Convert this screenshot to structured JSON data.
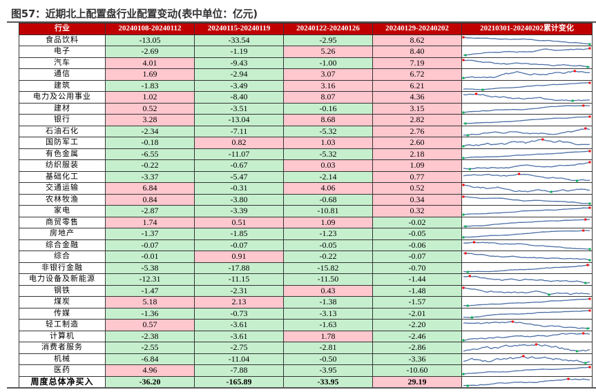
{
  "title": "图57：近期北上配置盘行业配置变动(表中单位：亿元)",
  "colors": {
    "header": "#c00000",
    "positive": "#ffc7ce",
    "negative": "#c6efce",
    "sparkline": "#4a6fa5",
    "max_marker": "#ff0000",
    "min_marker": "#00b050"
  },
  "chart_data": {
    "type": "table",
    "columns": [
      "行业",
      "20240108-20240112",
      "20240115-20240119",
      "20240122-20240126",
      "20240129-20240202",
      "20210301-20240202累计变化"
    ],
    "rows": [
      [
        "食品饮料",
        -13.05,
        -33.54,
        -2.95,
        8.62
      ],
      [
        "电子",
        -2.69,
        -1.19,
        5.26,
        8.4
      ],
      [
        "汽车",
        4.01,
        -9.43,
        -1.0,
        7.19
      ],
      [
        "通信",
        1.69,
        -2.94,
        3.07,
        6.72
      ],
      [
        "建筑",
        -1.83,
        -3.49,
        3.16,
        6.21
      ],
      [
        "电力及公用事业",
        1.02,
        -8.4,
        8.07,
        4.36
      ],
      [
        "建材",
        0.52,
        -3.51,
        -0.16,
        3.15
      ],
      [
        "银行",
        3.28,
        -13.04,
        8.68,
        2.82
      ],
      [
        "石油石化",
        -2.34,
        -7.11,
        -5.32,
        2.76
      ],
      [
        "国防军工",
        -0.18,
        0.82,
        1.03,
        2.6
      ],
      [
        "有色金属",
        -6.55,
        -11.07,
        -5.32,
        2.18
      ],
      [
        "纺织服装",
        -0.22,
        -0.67,
        0.03,
        1.09
      ],
      [
        "基础化工",
        -3.37,
        -5.47,
        -2.14,
        0.77
      ],
      [
        "交通运输",
        6.84,
        -0.31,
        4.06,
        0.52
      ],
      [
        "农林牧渔",
        0.84,
        -3.8,
        -0.68,
        0.34
      ],
      [
        "家电",
        -2.87,
        -3.39,
        -10.81,
        0.32
      ],
      [
        "商贸零售",
        1.74,
        0.51,
        1.09,
        -0.02
      ],
      [
        "房地产",
        -1.37,
        -1.85,
        -1.23,
        -0.05
      ],
      [
        "综合金融",
        -0.07,
        -0.07,
        -0.05,
        -0.06
      ],
      [
        "综合",
        -0.01,
        0.91,
        -0.22,
        -0.07
      ],
      [
        "非银行金融",
        -5.38,
        -17.88,
        -15.82,
        -0.7
      ],
      [
        "电力设备及新能源",
        -12.31,
        -11.15,
        -11.5,
        -1.44
      ],
      [
        "钢铁",
        -1.47,
        -2.31,
        0.43,
        -1.48
      ],
      [
        "煤炭",
        5.18,
        2.13,
        -1.38,
        -1.57
      ],
      [
        "传媒",
        -1.36,
        -0.73,
        -3.13,
        -2.01
      ],
      [
        "轻工制造",
        0.57,
        -3.61,
        -1.63,
        -2.2
      ],
      [
        "计算机",
        -2.38,
        -3.61,
        1.78,
        -2.46
      ],
      [
        "消费者服务",
        -2.55,
        -2.75,
        -2.81,
        -2.86
      ],
      [
        "机械",
        -6.84,
        -11.04,
        -0.5,
        -3.36
      ],
      [
        "医药",
        4.96,
        -7.88,
        -3.95,
        -10.6
      ]
    ],
    "total": [
      "周度总体净买入",
      -36.2,
      -165.89,
      -33.95,
      29.19
    ]
  }
}
